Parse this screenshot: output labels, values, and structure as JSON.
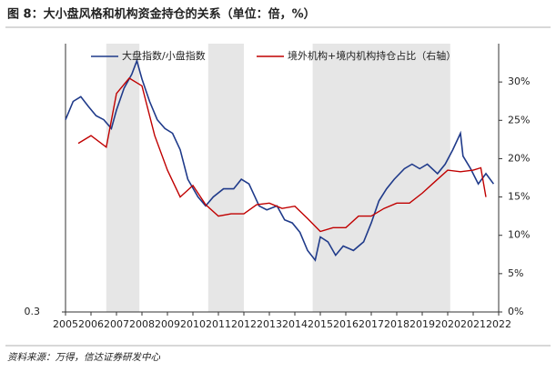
{
  "title": "图 8：大小盘风格和机构资金持仓的关系（单位：倍，%）",
  "source": "资料来源：万得，信达证券研发中心",
  "chart_data": {
    "type": "line",
    "xlim": [
      2005,
      2022
    ],
    "xticks": [
      2005,
      2006,
      2007,
      2008,
      2009,
      2010,
      2011,
      2012,
      2013,
      2014,
      2015,
      2016,
      2017,
      2018,
      2019,
      2020,
      2021,
      2022
    ],
    "ylim": [
      0.3,
      10
    ],
    "ylog": true,
    "yticks": [
      0.3
    ],
    "y2lim": [
      0,
      35
    ],
    "y2ticks": [
      {
        "value": 0,
        "label": "0%"
      },
      {
        "value": 5,
        "label": "5%"
      },
      {
        "value": 10,
        "label": "10%"
      },
      {
        "value": 15,
        "label": "15%"
      },
      {
        "value": 20,
        "label": "20%"
      },
      {
        "value": 25,
        "label": "25%"
      },
      {
        "value": 30,
        "label": "30%"
      }
    ],
    "shaded_periods": [
      [
        2006.6,
        2007.9
      ],
      [
        2010.6,
        2012.0
      ],
      [
        2014.7,
        2020.1
      ]
    ],
    "shade_color": "#e6e6e6",
    "legend": "top",
    "series": [
      {
        "name": "大盘指数/小盘指数",
        "color": "#1f3a8a",
        "x": [
          2005.0,
          2005.3,
          2005.6,
          2005.9,
          2006.2,
          2006.5,
          2006.8,
          2007.0,
          2007.3,
          2007.6,
          2007.8,
          2008.0,
          2008.3,
          2008.6,
          2008.9,
          2009.2,
          2009.5,
          2009.8,
          2010.2,
          2010.5,
          2010.8,
          2011.2,
          2011.6,
          2011.9,
          2012.2,
          2012.6,
          2012.9,
          2013.3,
          2013.6,
          2013.9,
          2014.2,
          2014.5,
          2014.8,
          2015.0,
          2015.3,
          2015.6,
          2015.9,
          2016.3,
          2016.7,
          2017.0,
          2017.3,
          2017.6,
          2017.9,
          2018.3,
          2018.6,
          2018.9,
          2019.2,
          2019.6,
          2019.9,
          2020.2,
          2020.5,
          2020.6,
          2020.9,
          2021.2,
          2021.5,
          2021.8
        ],
        "values": [
          3.7,
          4.7,
          5.0,
          4.4,
          3.9,
          3.7,
          3.3,
          4.2,
          5.6,
          6.7,
          8.0,
          6.3,
          4.7,
          3.7,
          3.3,
          3.1,
          2.5,
          1.7,
          1.35,
          1.2,
          1.35,
          1.5,
          1.5,
          1.7,
          1.6,
          1.2,
          1.14,
          1.2,
          1.0,
          0.96,
          0.85,
          0.67,
          0.59,
          0.8,
          0.75,
          0.63,
          0.71,
          0.67,
          0.75,
          0.96,
          1.28,
          1.5,
          1.7,
          1.95,
          2.07,
          1.95,
          2.07,
          1.83,
          2.07,
          2.5,
          3.1,
          2.3,
          1.95,
          1.6,
          1.83,
          1.6
        ]
      },
      {
        "name": "境外机构+境内机构持仓占比（右轴）",
        "color": "#c00000",
        "axis": "y2",
        "x": [
          2005.5,
          2006.0,
          2006.6,
          2007.0,
          2007.5,
          2008.0,
          2008.5,
          2009.0,
          2009.5,
          2010.0,
          2010.5,
          2011.0,
          2011.5,
          2012.0,
          2012.5,
          2013.0,
          2013.5,
          2014.0,
          2014.5,
          2015.0,
          2015.5,
          2016.0,
          2016.5,
          2017.0,
          2017.5,
          2018.0,
          2018.5,
          2019.0,
          2019.5,
          2020.0,
          2020.5,
          2021.0,
          2021.3,
          2021.5
        ],
        "values": [
          22,
          23,
          21.5,
          28.5,
          30.5,
          29.5,
          23,
          18.5,
          15,
          16.5,
          14,
          12.5,
          12.8,
          12.8,
          14,
          14.2,
          13.5,
          13.8,
          12.2,
          10.5,
          11,
          11,
          12.5,
          12.5,
          13.5,
          14.2,
          14.2,
          15.5,
          17,
          18.5,
          18.3,
          18.5,
          18.8,
          15
        ]
      }
    ]
  }
}
